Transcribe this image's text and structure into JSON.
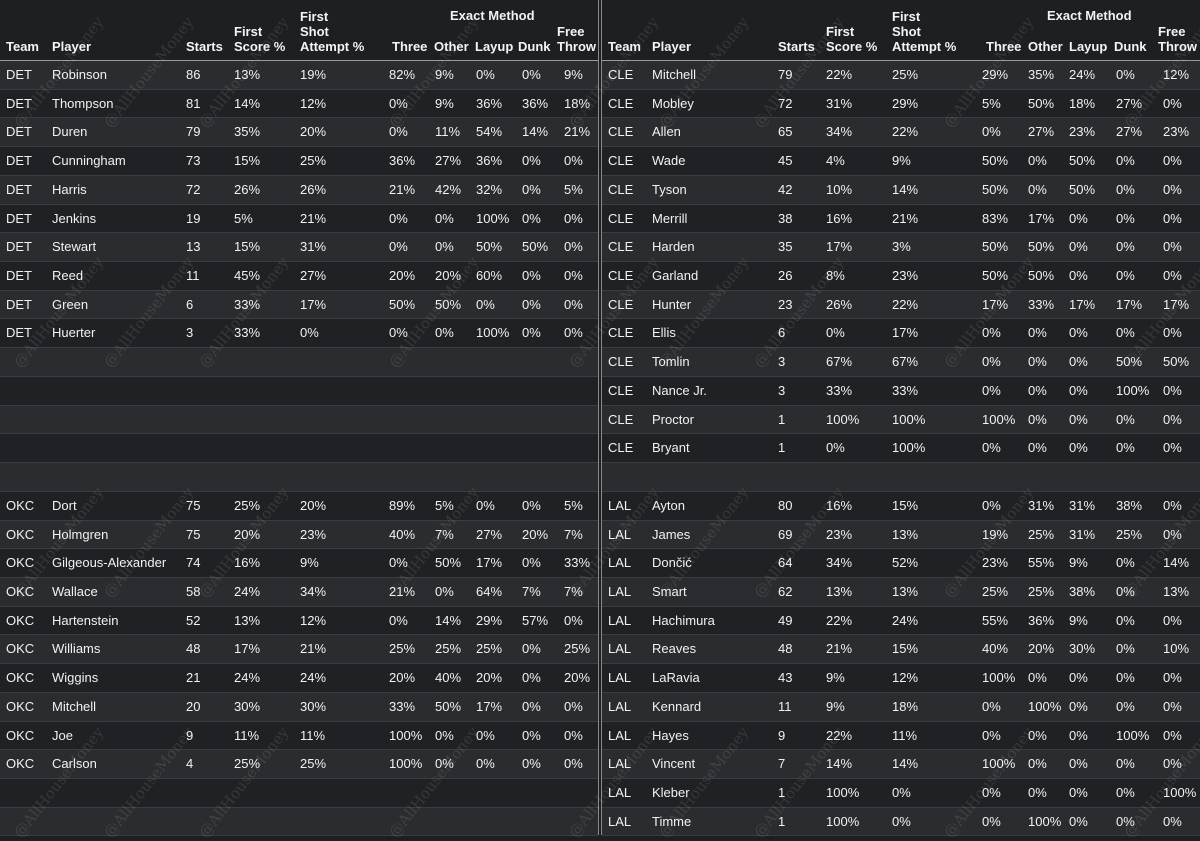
{
  "watermark": "@AllHouseMoney",
  "headers": {
    "team": "Team",
    "player": "Player",
    "starts": "Starts",
    "first_score": [
      "First",
      "Score %"
    ],
    "first_shot": [
      "First",
      "Shot",
      "Attempt %"
    ],
    "exact_method": "Exact Method",
    "three": "Three",
    "other": "Other",
    "layup": "Layup",
    "dunk": "Dunk",
    "free_throw": [
      "Free",
      "Throw"
    ]
  },
  "left_rows": [
    [
      "DET",
      "Robinson",
      "86",
      "13%",
      "19%",
      "82%",
      "9%",
      "0%",
      "0%",
      "9%"
    ],
    [
      "DET",
      "Thompson",
      "81",
      "14%",
      "12%",
      "0%",
      "9%",
      "36%",
      "36%",
      "18%"
    ],
    [
      "DET",
      "Duren",
      "79",
      "35%",
      "20%",
      "0%",
      "11%",
      "54%",
      "14%",
      "21%"
    ],
    [
      "DET",
      "Cunningham",
      "73",
      "15%",
      "25%",
      "36%",
      "27%",
      "36%",
      "0%",
      "0%"
    ],
    [
      "DET",
      "Harris",
      "72",
      "26%",
      "26%",
      "21%",
      "42%",
      "32%",
      "0%",
      "5%"
    ],
    [
      "DET",
      "Jenkins",
      "19",
      "5%",
      "21%",
      "0%",
      "0%",
      "100%",
      "0%",
      "0%"
    ],
    [
      "DET",
      "Stewart",
      "13",
      "15%",
      "31%",
      "0%",
      "0%",
      "50%",
      "50%",
      "0%"
    ],
    [
      "DET",
      "Reed",
      "11",
      "45%",
      "27%",
      "20%",
      "20%",
      "60%",
      "0%",
      "0%"
    ],
    [
      "DET",
      "Green",
      "6",
      "33%",
      "17%",
      "50%",
      "50%",
      "0%",
      "0%",
      "0%"
    ],
    [
      "DET",
      "Huerter",
      "3",
      "33%",
      "0%",
      "0%",
      "0%",
      "100%",
      "0%",
      "0%"
    ],
    [
      "",
      "",
      "",
      "",
      "",
      "",
      "",
      "",
      "",
      ""
    ],
    [
      "",
      "",
      "",
      "",
      "",
      "",
      "",
      "",
      "",
      ""
    ],
    [
      "",
      "",
      "",
      "",
      "",
      "",
      "",
      "",
      "",
      ""
    ],
    [
      "",
      "",
      "",
      "",
      "",
      "",
      "",
      "",
      "",
      ""
    ],
    [
      "",
      "",
      "",
      "",
      "",
      "",
      "",
      "",
      "",
      ""
    ],
    [
      "OKC",
      "Dort",
      "75",
      "25%",
      "20%",
      "89%",
      "5%",
      "0%",
      "0%",
      "5%"
    ],
    [
      "OKC",
      "Holmgren",
      "75",
      "20%",
      "23%",
      "40%",
      "7%",
      "27%",
      "20%",
      "7%"
    ],
    [
      "OKC",
      "Gilgeous-Alexander",
      "74",
      "16%",
      "9%",
      "0%",
      "50%",
      "17%",
      "0%",
      "33%"
    ],
    [
      "OKC",
      "Wallace",
      "58",
      "24%",
      "34%",
      "21%",
      "0%",
      "64%",
      "7%",
      "7%"
    ],
    [
      "OKC",
      "Hartenstein",
      "52",
      "13%",
      "12%",
      "0%",
      "14%",
      "29%",
      "57%",
      "0%"
    ],
    [
      "OKC",
      "Williams",
      "48",
      "17%",
      "21%",
      "25%",
      "25%",
      "25%",
      "0%",
      "25%"
    ],
    [
      "OKC",
      "Wiggins",
      "21",
      "24%",
      "24%",
      "20%",
      "40%",
      "20%",
      "0%",
      "20%"
    ],
    [
      "OKC",
      "Mitchell",
      "20",
      "30%",
      "30%",
      "33%",
      "50%",
      "17%",
      "0%",
      "0%"
    ],
    [
      "OKC",
      "Joe",
      "9",
      "11%",
      "11%",
      "100%",
      "0%",
      "0%",
      "0%",
      "0%"
    ],
    [
      "OKC",
      "Carlson",
      "4",
      "25%",
      "25%",
      "100%",
      "0%",
      "0%",
      "0%",
      "0%"
    ],
    [
      "",
      "",
      "",
      "",
      "",
      "",
      "",
      "",
      "",
      ""
    ],
    [
      "",
      "",
      "",
      "",
      "",
      "",
      "",
      "",
      "",
      ""
    ]
  ],
  "right_rows": [
    [
      "CLE",
      "Mitchell",
      "79",
      "22%",
      "25%",
      "29%",
      "35%",
      "24%",
      "0%",
      "12%"
    ],
    [
      "CLE",
      "Mobley",
      "72",
      "31%",
      "29%",
      "5%",
      "50%",
      "18%",
      "27%",
      "0%"
    ],
    [
      "CLE",
      "Allen",
      "65",
      "34%",
      "22%",
      "0%",
      "27%",
      "23%",
      "27%",
      "23%"
    ],
    [
      "CLE",
      "Wade",
      "45",
      "4%",
      "9%",
      "50%",
      "0%",
      "50%",
      "0%",
      "0%"
    ],
    [
      "CLE",
      "Tyson",
      "42",
      "10%",
      "14%",
      "50%",
      "0%",
      "50%",
      "0%",
      "0%"
    ],
    [
      "CLE",
      "Merrill",
      "38",
      "16%",
      "21%",
      "83%",
      "17%",
      "0%",
      "0%",
      "0%"
    ],
    [
      "CLE",
      "Harden",
      "35",
      "17%",
      "3%",
      "50%",
      "50%",
      "0%",
      "0%",
      "0%"
    ],
    [
      "CLE",
      "Garland",
      "26",
      "8%",
      "23%",
      "50%",
      "50%",
      "0%",
      "0%",
      "0%"
    ],
    [
      "CLE",
      "Hunter",
      "23",
      "26%",
      "22%",
      "17%",
      "33%",
      "17%",
      "17%",
      "17%"
    ],
    [
      "CLE",
      "Ellis",
      "6",
      "0%",
      "17%",
      "0%",
      "0%",
      "0%",
      "0%",
      "0%"
    ],
    [
      "CLE",
      "Tomlin",
      "3",
      "67%",
      "67%",
      "0%",
      "0%",
      "0%",
      "50%",
      "50%"
    ],
    [
      "CLE",
      "Nance Jr.",
      "3",
      "33%",
      "33%",
      "0%",
      "0%",
      "0%",
      "100%",
      "0%"
    ],
    [
      "CLE",
      "Proctor",
      "1",
      "100%",
      "100%",
      "100%",
      "0%",
      "0%",
      "0%",
      "0%"
    ],
    [
      "CLE",
      "Bryant",
      "1",
      "0%",
      "100%",
      "0%",
      "0%",
      "0%",
      "0%",
      "0%"
    ],
    [
      "",
      "",
      "",
      "",
      "",
      "",
      "",
      "",
      "",
      ""
    ],
    [
      "LAL",
      "Ayton",
      "80",
      "16%",
      "15%",
      "0%",
      "31%",
      "31%",
      "38%",
      "0%"
    ],
    [
      "LAL",
      "James",
      "69",
      "23%",
      "13%",
      "19%",
      "25%",
      "31%",
      "25%",
      "0%"
    ],
    [
      "LAL",
      "Dončić",
      "64",
      "34%",
      "52%",
      "23%",
      "55%",
      "9%",
      "0%",
      "14%"
    ],
    [
      "LAL",
      "Smart",
      "62",
      "13%",
      "13%",
      "25%",
      "25%",
      "38%",
      "0%",
      "13%"
    ],
    [
      "LAL",
      "Hachimura",
      "49",
      "22%",
      "24%",
      "55%",
      "36%",
      "9%",
      "0%",
      "0%"
    ],
    [
      "LAL",
      "Reaves",
      "48",
      "21%",
      "15%",
      "40%",
      "20%",
      "30%",
      "0%",
      "10%"
    ],
    [
      "LAL",
      "LaRavia",
      "43",
      "9%",
      "12%",
      "100%",
      "0%",
      "0%",
      "0%",
      "0%"
    ],
    [
      "LAL",
      "Kennard",
      "11",
      "9%",
      "18%",
      "0%",
      "100%",
      "0%",
      "0%",
      "0%"
    ],
    [
      "LAL",
      "Hayes",
      "9",
      "22%",
      "11%",
      "0%",
      "0%",
      "0%",
      "100%",
      "0%"
    ],
    [
      "LAL",
      "Vincent",
      "7",
      "14%",
      "14%",
      "100%",
      "0%",
      "0%",
      "0%",
      "0%"
    ],
    [
      "LAL",
      "Kleber",
      "1",
      "100%",
      "0%",
      "0%",
      "0%",
      "0%",
      "0%",
      "100%"
    ],
    [
      "LAL",
      "Timme",
      "1",
      "100%",
      "0%",
      "0%",
      "100%",
      "0%",
      "0%",
      "0%"
    ]
  ]
}
